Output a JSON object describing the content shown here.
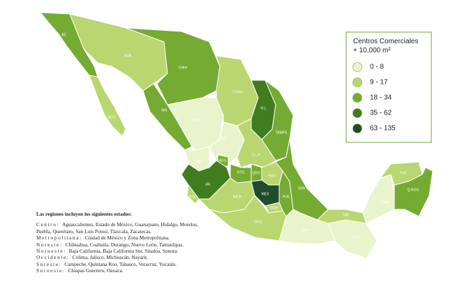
{
  "legend": {
    "title": [
      "Centros Comerciales",
      "+ 10,000 m²"
    ],
    "classes": [
      {
        "label": "0 - 8",
        "color": "#e9f4cc"
      },
      {
        "label": "9 - 17",
        "color": "#b9d670"
      },
      {
        "label": "18 - 34",
        "color": "#76ab33"
      },
      {
        "label": "35 - 62",
        "color": "#3f7d1f"
      },
      {
        "label": "63 - 135",
        "color": "#1f4d2c"
      }
    ]
  },
  "states": [
    {
      "label": "BC",
      "color": "#76ab33"
    },
    {
      "label": "SON",
      "color": "#b9d670"
    },
    {
      "label": "BCS",
      "color": "#b9d670"
    },
    {
      "label": "CHIH",
      "color": "#76ab33"
    },
    {
      "label": "SIN",
      "color": "#76ab33"
    },
    {
      "label": "DGO",
      "color": "#e9f4cc"
    },
    {
      "label": "COAH",
      "color": "#b9d670"
    },
    {
      "label": "N.L.",
      "color": "#3f7d1f"
    },
    {
      "label": "TAMPS",
      "color": "#76ab33"
    },
    {
      "label": "ZAC",
      "color": "#e9f4cc"
    },
    {
      "label": "S.L.P.",
      "color": "#b9d670"
    },
    {
      "label": "NAY",
      "color": "#e9f4cc"
    },
    {
      "label": "AGS",
      "color": "#76ab33"
    },
    {
      "label": "JAL",
      "color": "#3f7d1f"
    },
    {
      "label": "GTO",
      "color": "#76ab33"
    },
    {
      "label": "QRO",
      "color": "#76ab33"
    },
    {
      "label": "HGO",
      "color": "#b9d670"
    },
    {
      "label": "MICH",
      "color": "#b9d670"
    },
    {
      "label": "COL",
      "color": "#b9d670"
    },
    {
      "label": "MEX",
      "color": "#1f4d2c"
    },
    {
      "label": "MOR",
      "color": "#b9d670"
    },
    {
      "label": "PUE",
      "color": "#76ab33"
    },
    {
      "label": "VER",
      "color": "#76ab33"
    },
    {
      "label": "GRO",
      "color": "#b9d670"
    },
    {
      "label": "OAX",
      "color": "#e9f4cc"
    },
    {
      "label": "CHIS",
      "color": "#e9f4cc"
    },
    {
      "label": "TAB",
      "color": "#b9d670"
    },
    {
      "label": "CAM",
      "color": "#e9f4cc"
    },
    {
      "label": "YUC",
      "color": "#b9d670"
    },
    {
      "label": "Q.ROO",
      "color": "#76ab33"
    }
  ],
  "notes": {
    "heading": "Las regiones incluyen los siguientes estados:",
    "regions": [
      {
        "name": "Centro:",
        "states": "Aguascalientes, Estado de México, Guanajuato, Hidalgo, Morelos, Puebla, Querétaro, San Luis Potosí, Tlaxcala, Zacatecas."
      },
      {
        "name": "Metropolitana:",
        "states": "Ciudad de México y Zona Metropolitana."
      },
      {
        "name": "Noreste:",
        "states": "Chihuahua, Coahuila, Durango, Nuevo León, Tamaulipas."
      },
      {
        "name": "Noroeste:",
        "states": "Baja California, Baja California Sur, Sinaloa, Sonora."
      },
      {
        "name": "Occidente:",
        "states": "Colima, Jalisco, Michoacán, Nayarit."
      },
      {
        "name": "Sureste:",
        "states": "Campeche, Quintana Roo, Tabasco, Veracruz, Yucatán."
      },
      {
        "name": "Suroeste:",
        "states": "Chiapas Guerrero, Oaxaca."
      }
    ]
  }
}
